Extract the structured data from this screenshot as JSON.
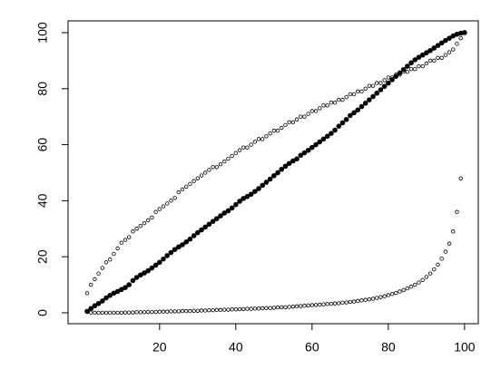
{
  "chart_data": {
    "type": "scatter",
    "x": [
      1,
      2,
      3,
      4,
      5,
      6,
      7,
      8,
      9,
      10,
      11,
      12,
      13,
      14,
      15,
      16,
      17,
      18,
      19,
      20,
      21,
      22,
      23,
      24,
      25,
      26,
      27,
      28,
      29,
      30,
      31,
      32,
      33,
      34,
      35,
      36,
      37,
      38,
      39,
      40,
      41,
      42,
      43,
      44,
      45,
      46,
      47,
      48,
      49,
      50,
      51,
      52,
      53,
      54,
      55,
      56,
      57,
      58,
      59,
      60,
      61,
      62,
      63,
      64,
      65,
      66,
      67,
      68,
      69,
      70,
      71,
      72,
      73,
      74,
      75,
      76,
      77,
      78,
      79,
      80,
      81,
      82,
      83,
      84,
      85,
      86,
      87,
      88,
      89,
      90,
      91,
      92,
      93,
      94,
      95,
      96,
      97,
      98,
      99,
      100
    ],
    "series": [
      {
        "color": "#000000",
        "filled": true,
        "values": [
          0.5,
          1.5,
          2.5,
          3.3,
          4.2,
          5.3,
          6.2,
          7,
          7.6,
          8.3,
          9,
          10,
          11.5,
          12.6,
          13.5,
          14.2,
          15,
          16,
          17,
          18,
          19.2,
          20.4,
          21.5,
          22.6,
          23.5,
          24.3,
          25.3,
          26.3,
          27.5,
          28.6,
          29.6,
          30.6,
          31.6,
          32.6,
          33.6,
          34.6,
          35.6,
          36.4,
          37.4,
          38.6,
          39.8,
          40.8,
          41.5,
          42.3,
          43.3,
          44.3,
          45.5,
          46.6,
          47.7,
          48.9,
          50,
          51.2,
          52.3,
          53.3,
          54.2,
          54.9,
          56.2,
          57.1,
          58,
          59,
          60,
          61,
          62,
          63,
          64,
          65.2,
          66.6,
          67.8,
          69,
          70.4,
          71.4,
          72.4,
          73.6,
          74.8,
          76,
          77.2,
          78.4,
          79.6,
          80.8,
          82,
          83.2,
          84.4,
          85.6,
          86.8,
          88,
          89.2,
          90.3,
          91.2,
          92,
          92.8,
          93.6,
          94.5,
          95.4,
          96.3,
          97.2,
          98,
          98.8,
          99.4,
          99.8,
          100
        ]
      },
      {
        "color": "#000000",
        "filled": false,
        "values": [
          7,
          10,
          12,
          14,
          16,
          18,
          19,
          21,
          23,
          25,
          26,
          27,
          29,
          30,
          31,
          32,
          33,
          34,
          36,
          37,
          38,
          39,
          40,
          41,
          43,
          44,
          45,
          46,
          47,
          48,
          49,
          50,
          51,
          52,
          52,
          53,
          54,
          55,
          56,
          57,
          58,
          59,
          59,
          60,
          61,
          62,
          62,
          63,
          64,
          65,
          65,
          66,
          67,
          68,
          68,
          69,
          70,
          70,
          71,
          72,
          72,
          73,
          74,
          74,
          75,
          75,
          76,
          76,
          77,
          78,
          78,
          79,
          79,
          80,
          81,
          81,
          82,
          82,
          83,
          84,
          84,
          85,
          85,
          86,
          86,
          87,
          87,
          88,
          88,
          89,
          90,
          90,
          91,
          91,
          92,
          93,
          94,
          96,
          98,
          null
        ]
      },
      {
        "color": "#000000",
        "filled": false,
        "values": [
          0.5,
          0.1,
          0,
          0,
          0,
          0,
          0,
          0,
          0,
          0,
          0.1,
          0.1,
          0.1,
          0.2,
          0.2,
          0.2,
          0.3,
          0.3,
          0.3,
          0.4,
          0.4,
          0.4,
          0.5,
          0.5,
          0.5,
          0.6,
          0.6,
          0.6,
          0.7,
          0.7,
          0.8,
          0.8,
          0.9,
          0.9,
          1,
          1,
          1.1,
          1.1,
          1.2,
          1.2,
          1.3,
          1.3,
          1.4,
          1.4,
          1.5,
          1.5,
          1.6,
          1.7,
          1.7,
          1.8,
          1.9,
          2,
          2,
          2.1,
          2.2,
          2.3,
          2.4,
          2.5,
          2.6,
          2.7,
          2.8,
          2.9,
          3,
          3.1,
          3.2,
          3.3,
          3.4,
          3.6,
          3.7,
          3.9,
          4,
          4.2,
          4.4,
          4.6,
          4.8,
          5,
          5.3,
          5.6,
          5.9,
          6.3,
          6.7,
          7.1,
          7.6,
          8.1,
          8.7,
          9.3,
          10,
          10.8,
          11.7,
          12.8,
          14,
          15.5,
          17.2,
          19.3,
          21.8,
          24.7,
          29,
          36,
          48,
          null
        ]
      }
    ],
    "xlim": [
      -4,
      103.6
    ],
    "ylim": [
      -3.9,
      104.2
    ],
    "xticks": [
      20,
      40,
      60,
      80,
      100
    ],
    "yticks": [
      0,
      20,
      40,
      60,
      80,
      100
    ]
  }
}
